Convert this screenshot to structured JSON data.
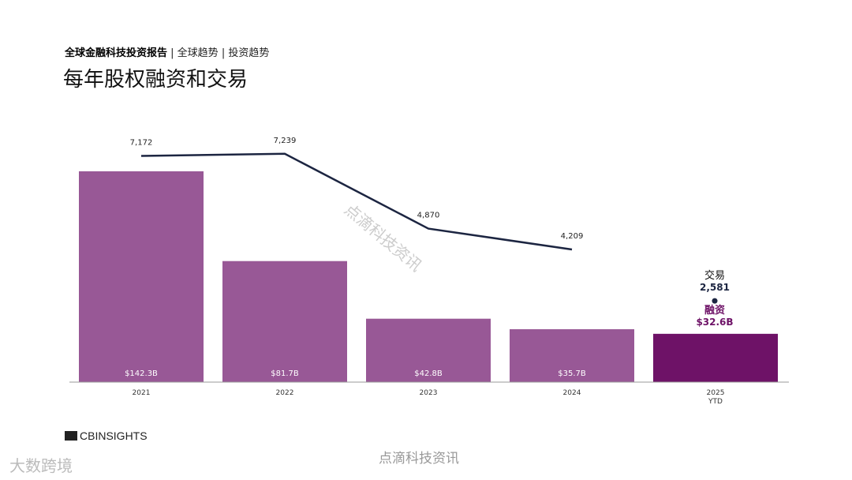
{
  "header": {
    "report": "全球金融科技投资报告",
    "sep1": " | ",
    "section1": "全球趋势",
    "sep2": " | ",
    "section2": "投资趋势",
    "title": "每年股权融资和交易"
  },
  "chart_data": {
    "type": "bar+line",
    "categories": [
      "2021",
      "2022",
      "2023",
      "2024",
      "2025 YTD"
    ],
    "series": [
      {
        "name": "融资",
        "type": "bar",
        "values": [
          142.3,
          81.7,
          42.8,
          35.7,
          32.6
        ],
        "labels": [
          "$142.3B",
          "$81.7B",
          "$42.8B",
          "$35.7B",
          "$32.6B"
        ]
      },
      {
        "name": "交易",
        "type": "line",
        "values": [
          7172,
          7239,
          4870,
          4209,
          2581
        ],
        "labels": [
          "7,172",
          "7,239",
          "4,870",
          "4,209",
          "2,581"
        ]
      }
    ],
    "colors": {
      "bar": "#985896",
      "bar_ytd": "#6e1267",
      "line": "#1c2541"
    },
    "legend_annotation": {
      "deals": "交易",
      "funding": "融资"
    }
  },
  "footer": {
    "logo": "CBINSIGHTS",
    "watermark1": "点滴科技资讯",
    "watermark2": "大数跨境"
  }
}
